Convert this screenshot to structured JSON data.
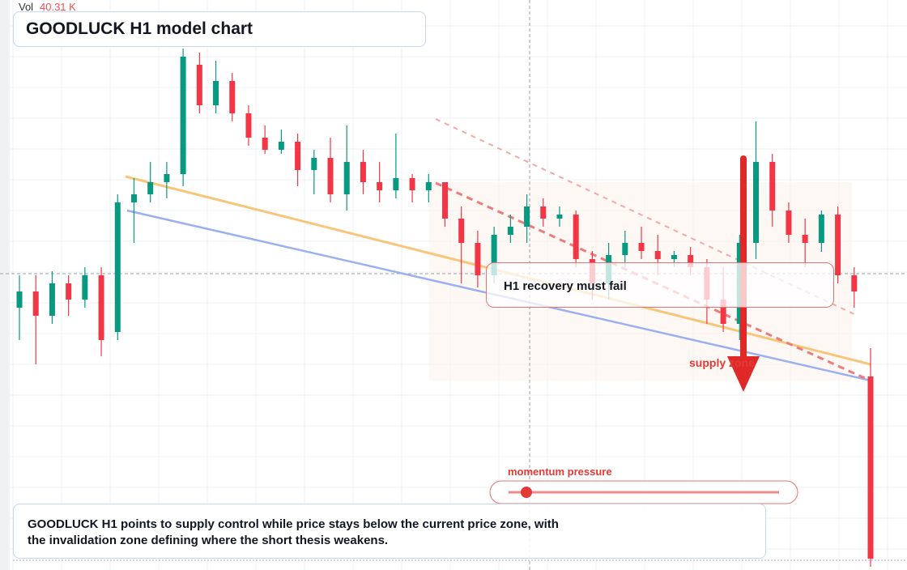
{
  "chart_data": {
    "type": "candlestick",
    "title": "GOODLUCK H1 model chart",
    "volume": {
      "label": "Vol",
      "value": "40.31 K"
    },
    "annotations": {
      "callout": "H1 recovery must fail",
      "zone": "supply zone",
      "indicator": "momentum pressure",
      "caption": "GOODLUCK H1 points to supply control while price stays below the current price zone, with the invalidation zone defining where the short thesis weakens."
    },
    "up_color": "#089981",
    "down_color": "#f23645",
    "grid": true,
    "ylim": [
      0,
      70.4
    ],
    "series": {
      "open": [
        32.4,
        34.4,
        31.4,
        35.4,
        33.4,
        36.4,
        29.4,
        45.4,
        46.4,
        47.9,
        48.9,
        62.4,
        57.4,
        60.4,
        56.4,
        53.4,
        51.9,
        52.9,
        49.4,
        50.9,
        46.4,
        50.4,
        47.9,
        46.9,
        48.4,
        46.9,
        47.9,
        43.4,
        40.4,
        36.4,
        41.4,
        42.4,
        44.9,
        43.4,
        43.9,
        38.4,
        35.4,
        38.9,
        40.4,
        39.4,
        38.4,
        38.9,
        37.4,
        33.4,
        30.4,
        40.4,
        50.4,
        44.4,
        41.4,
        40.4,
        43.9,
        36.4,
        23.9
      ],
      "high": [
        36.4,
        36.4,
        36.9,
        36.4,
        37.4,
        37.4,
        46.4,
        48.4,
        50.4,
        50.4,
        64.4,
        63.9,
        62.9,
        61.4,
        57.4,
        54.9,
        54.4,
        53.9,
        51.9,
        53.4,
        54.9,
        51.9,
        50.4,
        53.9,
        48.9,
        48.9,
        47.9,
        44.9,
        41.9,
        42.4,
        43.9,
        46.4,
        45.9,
        44.9,
        44.4,
        39.4,
        40.4,
        41.9,
        42.4,
        41.4,
        39.4,
        39.9,
        38.4,
        37.4,
        41.4,
        55.4,
        51.4,
        45.4,
        43.4,
        44.4,
        44.9,
        37.4,
        27.4
      ],
      "low": [
        28.4,
        25.4,
        30.4,
        31.4,
        32.4,
        26.4,
        28.4,
        40.4,
        45.4,
        45.9,
        47.4,
        56.4,
        56.4,
        55.4,
        52.4,
        51.4,
        51.4,
        47.4,
        46.4,
        45.4,
        44.4,
        46.4,
        45.4,
        45.9,
        45.4,
        45.4,
        42.4,
        35.4,
        34.9,
        35.4,
        40.4,
        40.4,
        42.4,
        42.4,
        37.4,
        33.4,
        33.4,
        37.4,
        38.4,
        36.4,
        37.4,
        36.4,
        30.4,
        29.4,
        28.4,
        38.4,
        42.4,
        40.4,
        37.4,
        39.3,
        35.4,
        32.4,
        0.4
      ],
      "close": [
        34.4,
        31.4,
        35.4,
        33.4,
        36.4,
        28.4,
        45.4,
        46.4,
        47.9,
        48.9,
        63.4,
        57.4,
        60.4,
        56.4,
        53.4,
        51.9,
        52.9,
        49.4,
        50.9,
        46.4,
        50.4,
        47.9,
        46.9,
        48.4,
        46.9,
        47.9,
        43.4,
        40.4,
        36.4,
        41.4,
        42.4,
        44.9,
        43.4,
        43.9,
        38.4,
        35.4,
        38.9,
        40.4,
        39.4,
        38.4,
        38.9,
        37.4,
        33.4,
        30.4,
        40.4,
        50.4,
        44.4,
        41.4,
        40.4,
        43.9,
        36.4,
        34.4,
        1.4
      ]
    }
  }
}
